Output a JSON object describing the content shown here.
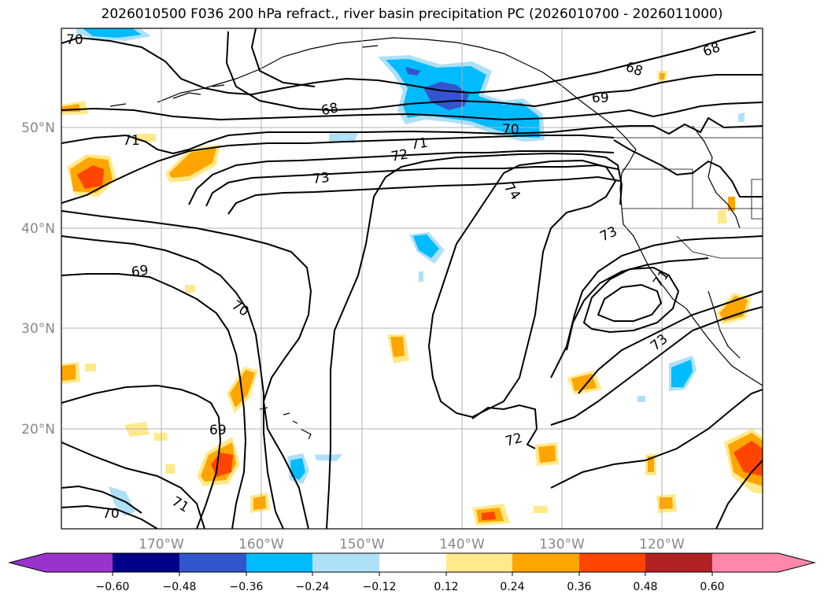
{
  "title": "2026010500 F036 200 hPa refract., river basin precipitation PC (2026010700 - 2026011000)",
  "map": {
    "lat_labels": [
      "50°N",
      "40°N",
      "30°N",
      "20°N"
    ],
    "lon_labels": [
      "170°W",
      "160°W",
      "150°W",
      "140°W",
      "130°W",
      "120°W"
    ],
    "contour_labels": [
      "70",
      "68",
      "68",
      "69",
      "68",
      "71",
      "71",
      "72",
      "73",
      "74",
      "70",
      "73",
      "69",
      "70",
      "69",
      "71",
      "73",
      "72",
      "70",
      "71"
    ]
  },
  "colorbar": {
    "ticks": [
      "−0.60",
      "−0.48",
      "−0.36",
      "−0.24",
      "−0.12",
      "0.12",
      "0.24",
      "0.36",
      "0.48",
      "0.60"
    ],
    "colors": [
      "#9933cc",
      "#00008b",
      "#3355cc",
      "#00bbff",
      "#aee0f8",
      "#ffffff",
      "#ffe98a",
      "#ffa500",
      "#ff4500",
      "#b22222",
      "#ff88aa"
    ]
  }
}
